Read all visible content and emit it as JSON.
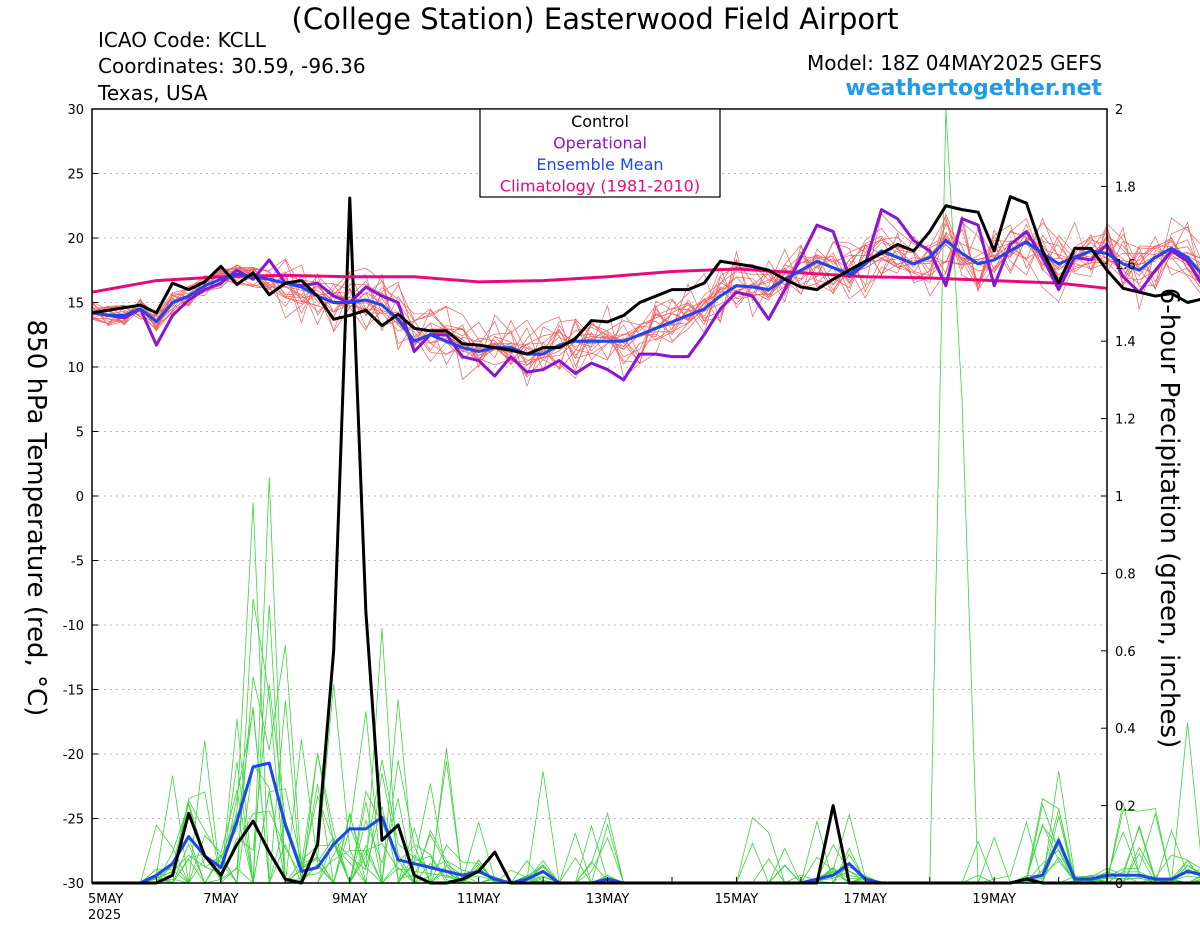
{
  "header": {
    "title": "(College Station) Easterwood Field Airport",
    "icao": "ICAO Code: KCLL",
    "coordinates": "Coordinates: 30.59, -96.36",
    "region": "Texas, USA",
    "model": "Model: 18Z 04MAY2025 GEFS",
    "site": "weathertogether.net"
  },
  "chart_data": {
    "type": "line",
    "ylabel": "850 hPa Temperature (red, °C)",
    "ylabel_right": "6-hour Precipitation (green, inches)",
    "xlim": [
      "2025-05-05 00Z",
      "2025-05-20 18Z"
    ],
    "ylim": [
      -30,
      30
    ],
    "ylim_right": [
      0,
      2
    ],
    "xticks": [
      {
        "label": "5MAY",
        "sub": "2025",
        "day": 0
      },
      {
        "label": "7MAY",
        "day": 2
      },
      {
        "label": "9MAY",
        "day": 4
      },
      {
        "label": "11MAY",
        "day": 6
      },
      {
        "label": "13MAY",
        "day": 8
      },
      {
        "label": "15MAY",
        "day": 10
      },
      {
        "label": "17MAY",
        "day": 12
      },
      {
        "label": "19MAY",
        "day": 14
      }
    ],
    "yticks_left": [
      30,
      25,
      20,
      15,
      10,
      5,
      0,
      -5,
      -10,
      -15,
      -20,
      -25,
      -30
    ],
    "yticks_right": [
      2,
      1.8,
      1.6,
      1.4,
      1.2,
      1,
      0.8,
      0.6,
      0.4,
      0.2,
      0
    ],
    "grid": true,
    "x_step_hours": 6,
    "legend": {
      "placement": "top-center",
      "entries": [
        {
          "name": "Control",
          "color": "#000000"
        },
        {
          "name": "Operational",
          "color": "#8a13d4"
        },
        {
          "name": "Ensemble Mean",
          "color": "#1e46f0"
        },
        {
          "name": "Climatology (1981-2010)",
          "color": "#e80a7c"
        }
      ]
    },
    "colors": {
      "control": "#000000",
      "operational": "#8a13d4",
      "mean": "#1e46f0",
      "climatology": "#e80a7c",
      "members_temp": "#f06060",
      "members_precip": "#3ed43e"
    },
    "series": [
      {
        "name": "Climatology (1981-2010)",
        "axis": "left",
        "x": [
          0,
          1,
          2,
          3,
          4,
          5,
          6,
          7,
          8,
          9,
          10,
          11,
          12,
          13,
          14,
          15,
          15.75
        ],
        "values": [
          15.8,
          16.7,
          17.0,
          17.1,
          17.0,
          17.0,
          16.6,
          16.7,
          17.0,
          17.4,
          17.6,
          17.3,
          17.0,
          16.9,
          16.7,
          16.5,
          16.1
        ]
      },
      {
        "name": "Control",
        "axis": "left",
        "values": [
          14.2,
          14.4,
          14.6,
          14.8,
          14.2,
          16.5,
          16.0,
          16.6,
          17.8,
          16.4,
          17.3,
          15.6,
          16.5,
          16.7,
          15.5,
          13.7,
          14.0,
          14.4,
          13.2,
          14.1,
          13.0,
          12.8,
          12.8,
          11.8,
          11.7,
          11.5,
          11.3,
          11.0,
          11.5,
          11.5,
          12.2,
          13.6,
          13.5,
          14.0,
          15.0,
          15.5,
          16.0,
          16.0,
          16.5,
          18.2,
          18.0,
          17.8,
          17.5,
          16.8,
          16.2,
          16.0,
          16.8,
          17.5,
          18.2,
          18.8,
          19.5,
          19.0,
          20.5,
          22.5,
          22.2,
          22.0,
          19.0,
          23.2,
          22.7,
          19.0,
          16.5,
          19.2,
          19.2,
          17.5,
          16.1,
          15.8,
          15.5,
          15.7,
          15.0,
          15.3
        ]
      },
      {
        "name": "Operational",
        "axis": "left",
        "values": [
          14.2,
          14.0,
          13.8,
          14.5,
          11.7,
          14.0,
          15.2,
          16.0,
          16.5,
          17.5,
          16.8,
          18.3,
          16.5,
          16.3,
          16.5,
          15.5,
          15.0,
          16.2,
          15.5,
          15.0,
          11.2,
          12.5,
          12.5,
          10.8,
          10.5,
          9.3,
          10.8,
          9.6,
          9.8,
          10.5,
          9.5,
          10.3,
          9.8,
          9.0,
          11.0,
          11.0,
          10.8,
          10.8,
          12.5,
          14.5,
          15.8,
          15.5,
          13.7,
          16.0,
          18.5,
          21.0,
          20.5,
          17.0,
          18.0,
          22.2,
          21.5,
          19.8,
          19.0,
          16.3,
          21.5,
          21.0,
          16.3,
          19.5,
          20.5,
          18.5,
          16.0,
          18.5,
          18.3,
          19.5,
          17.0,
          15.8,
          17.5,
          19.0,
          18.2,
          16.2
        ]
      },
      {
        "name": "Ensemble Mean",
        "axis": "left",
        "values": [
          14.3,
          14.0,
          14.0,
          14.5,
          13.5,
          15.0,
          15.5,
          16.3,
          16.8,
          17.2,
          17.0,
          16.8,
          16.5,
          16.2,
          15.5,
          15.0,
          15.0,
          15.2,
          14.8,
          13.7,
          12.0,
          12.5,
          12.0,
          11.5,
          11.2,
          11.5,
          11.5,
          11.0,
          11.0,
          11.7,
          12.0,
          12.0,
          12.0,
          12.0,
          12.5,
          13.0,
          13.5,
          14.0,
          14.5,
          15.5,
          16.3,
          16.2,
          16.0,
          16.8,
          17.5,
          18.2,
          17.7,
          17.2,
          18.0,
          19.0,
          18.5,
          18.0,
          18.5,
          19.8,
          18.8,
          18.0,
          18.3,
          19.0,
          19.7,
          18.8,
          18.0,
          18.5,
          19.0,
          18.8,
          18.0,
          17.5,
          18.5,
          19.2,
          18.5,
          17.0
        ]
      },
      {
        "name": "Ensemble Mean",
        "axis": "right",
        "unit": "in",
        "values": [
          0,
          0,
          0,
          0,
          0.02,
          0.05,
          0.12,
          0.07,
          0.04,
          0.16,
          0.3,
          0.31,
          0.15,
          0.03,
          0.04,
          0.1,
          0.14,
          0.14,
          0.17,
          0.06,
          0.05,
          0.04,
          0.03,
          0.02,
          0.03,
          0.01,
          0,
          0.01,
          0.03,
          0,
          0,
          0,
          0.01,
          0,
          0,
          0,
          0,
          0,
          0,
          0,
          0,
          0,
          0,
          0,
          0,
          0.01,
          0.02,
          0.05,
          0.01,
          0,
          0,
          0,
          0,
          0,
          0,
          0,
          0,
          0,
          0.01,
          0.02,
          0.11,
          0.01,
          0.01,
          0.02,
          0.02,
          0.02,
          0.01,
          0.01,
          0.03,
          0.02
        ]
      },
      {
        "name": "Control",
        "axis": "right",
        "unit": "in",
        "values": [
          0,
          0,
          0,
          0,
          0,
          0.02,
          0.18,
          0.07,
          0.02,
          0.1,
          0.16,
          0.08,
          0.01,
          0,
          0.1,
          0.6,
          1.77,
          0.7,
          0.11,
          0.15,
          0.02,
          0,
          0,
          0.01,
          0.03,
          0.08,
          0,
          0,
          0,
          0,
          0,
          0,
          0,
          0,
          0,
          0,
          0,
          0,
          0,
          0,
          0,
          0,
          0,
          0,
          0,
          0,
          0.2,
          0,
          0,
          0,
          0,
          0,
          0,
          0,
          0,
          0,
          0,
          0,
          0.01,
          0,
          0,
          0,
          0,
          0,
          0,
          0,
          0,
          0,
          0,
          0
        ]
      }
    ]
  }
}
